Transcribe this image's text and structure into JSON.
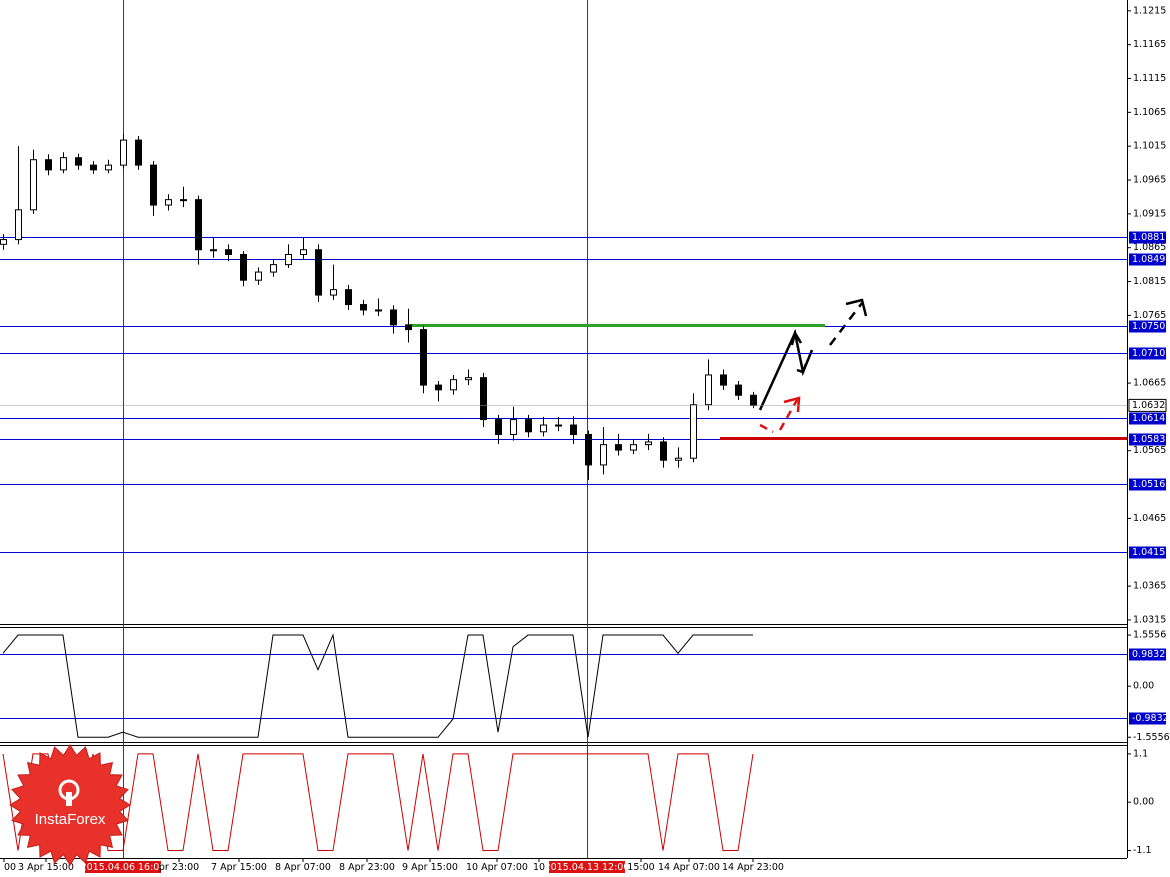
{
  "chart_data": [
    {
      "type": "candlestick",
      "open": [
        1.087,
        1.0877,
        1.0921,
        1.0995,
        1.098,
        1.0998,
        1.0987,
        1.098,
        1.0987,
        1.1024,
        1.0987,
        1.0928,
        1.0936,
        1.0936,
        1.0862,
        1.0862,
        1.0855,
        1.0817,
        1.0829,
        1.084,
        1.0855,
        1.0862,
        1.0795,
        1.0803,
        1.0781,
        1.0773,
        1.0773,
        1.0751,
        1.0744,
        1.0662,
        1.0655,
        1.067,
        1.0673,
        1.0611,
        1.0589,
        1.0611,
        1.0593,
        1.0603,
        1.0603,
        1.0589,
        1.0544,
        1.0574,
        1.0566,
        1.0574,
        1.0578,
        1.0551,
        1.0554,
        1.0633,
        1.0677,
        1.0662,
        1.0647
      ],
      "high": [
        1.0885,
        1.1015,
        1.101,
        1.1003,
        1.1006,
        1.1004,
        1.0993,
        1.0995,
        1.1033,
        1.103,
        1.0993,
        1.0944,
        1.0955,
        1.0942,
        1.088,
        1.087,
        1.086,
        1.0836,
        1.0848,
        1.087,
        1.088,
        1.087,
        1.084,
        1.081,
        1.0788,
        1.079,
        1.078,
        1.0775,
        1.075,
        1.0668,
        1.0677,
        1.0685,
        1.068,
        1.0618,
        1.063,
        1.0618,
        1.0615,
        1.0615,
        1.0616,
        1.0595,
        1.06,
        1.059,
        1.0582,
        1.059,
        1.0585,
        1.057,
        1.065,
        1.07,
        1.0685,
        1.0668,
        1.0652
      ],
      "low": [
        1.0862,
        1.087,
        1.0915,
        1.0972,
        1.0975,
        1.098,
        1.0974,
        1.0975,
        1.0982,
        1.098,
        1.0912,
        1.092,
        1.0925,
        1.084,
        1.085,
        1.0845,
        1.0808,
        1.081,
        1.0822,
        1.0835,
        1.0848,
        1.0785,
        1.0788,
        1.0773,
        1.0765,
        1.0764,
        1.0738,
        1.0725,
        1.065,
        1.0638,
        1.0648,
        1.0662,
        1.06,
        1.0575,
        1.058,
        1.0585,
        1.0586,
        1.0594,
        1.0575,
        1.0522,
        1.053,
        1.0558,
        1.056,
        1.0566,
        1.054,
        1.054,
        1.0548,
        1.0625,
        1.0655,
        1.064,
        1.0628
      ],
      "close": [
        1.0877,
        1.0921,
        1.0995,
        1.098,
        1.0998,
        1.0987,
        1.098,
        1.0987,
        1.1024,
        1.0987,
        1.0928,
        1.0936,
        1.0936,
        1.0862,
        1.0862,
        1.0855,
        1.0817,
        1.0829,
        1.084,
        1.0855,
        1.0862,
        1.0795,
        1.0803,
        1.0781,
        1.0773,
        1.0773,
        1.0751,
        1.0744,
        1.0662,
        1.0655,
        1.067,
        1.0673,
        1.0611,
        1.0589,
        1.0611,
        1.0593,
        1.0603,
        1.0603,
        1.0589,
        1.0544,
        1.0574,
        1.0566,
        1.0574,
        1.0578,
        1.0551,
        1.0554,
        1.0633,
        1.0677,
        1.0662,
        1.0647,
        1.0632
      ],
      "ylim": [
        1.0309,
        1.1231
      ],
      "yticks": [
        1.1215,
        1.1165,
        1.1115,
        1.1065,
        1.1015,
        1.0965,
        1.0915,
        1.0865,
        1.0815,
        1.0765,
        1.0665,
        1.0565,
        1.0465,
        1.0365,
        1.0315
      ],
      "levels": [
        1.0881,
        1.0849,
        {
          "value": 1.075,
          "label": "1.0750"
        },
        {
          "value": 1.071,
          "label": "1.0710"
        },
        1.0614,
        1.0583,
        1.0516,
        1.0415
      ],
      "level_color": "#0000cc",
      "highlight_lines": [
        {
          "value": 1.075,
          "color": "#2ca02c"
        },
        {
          "value": 1.0583,
          "color": "#cc0000"
        }
      ],
      "last_price": 1.0632,
      "x_labels": [
        {
          "text": "00"
        },
        {
          "text": "3 Apr 15:00"
        },
        {
          "text": "2015.04.06 16:00",
          "highlight": true
        },
        {
          "text": "pr 23:00"
        },
        {
          "text": "7 Apr 15:00"
        },
        {
          "text": "8 Apr 07:00"
        },
        {
          "text": "8 Apr 23:00"
        },
        {
          "text": "9 Apr 15:00"
        },
        {
          "text": "10 Apr 07:00"
        },
        {
          "text": "10"
        },
        {
          "text": "2015.04.13 12:00",
          "highlight": true
        },
        {
          "text": "15:00"
        },
        {
          "text": "14 Apr 07:00"
        },
        {
          "text": "14 Apr 23:00"
        }
      ],
      "watermark": "InstaForex"
    },
    {
      "type": "line",
      "color": "#000000",
      "values": [
        1.0,
        1.5556,
        1.5556,
        1.5556,
        1.5556,
        -1.5556,
        -1.5556,
        -1.5556,
        -1.4,
        -1.5556,
        -1.5556,
        -1.5556,
        -1.5556,
        -1.5556,
        -1.5556,
        -1.5556,
        -1.5556,
        -1.5556,
        1.5556,
        1.5556,
        1.5556,
        0.5,
        1.5556,
        -1.5556,
        -1.5556,
        -1.5556,
        -1.5556,
        -1.5556,
        -1.5556,
        -1.5556,
        -1.0,
        1.5556,
        1.5556,
        -1.4,
        1.2,
        1.5556,
        1.5556,
        1.5556,
        1.5556,
        -1.5556,
        1.5556,
        1.5556,
        1.5556,
        1.5556,
        1.5556,
        1.0,
        1.5556,
        1.5556,
        1.5556,
        1.5556,
        1.5556
      ],
      "ylim": [
        -1.7,
        1.77
      ],
      "yticks": [
        1.5556,
        {
          "value": 0,
          "label": "0.00"
        },
        -1.5556
      ],
      "levels": [
        0.9832,
        -0.9832
      ],
      "level_color": "#0000cc"
    },
    {
      "type": "line",
      "color": "#cc0000",
      "values": [
        1.1,
        -1.1,
        1.1,
        1.1,
        -1.1,
        -1.1,
        1.1,
        -1.1,
        -1.1,
        1.1,
        1.1,
        -1.1,
        -1.1,
        1.1,
        -1.1,
        -1.1,
        1.1,
        1.1,
        1.1,
        1.1,
        1.1,
        -1.1,
        -1.1,
        1.1,
        1.1,
        1.1,
        1.1,
        -1.1,
        1.1,
        -1.1,
        1.1,
        1.1,
        -1.1,
        -1.1,
        1.1,
        1.1,
        1.1,
        1.1,
        1.1,
        1.1,
        1.1,
        1.1,
        1.1,
        1.1,
        -1.1,
        1.1,
        1.1,
        1.1,
        -1.1,
        -1.1,
        1.1
      ],
      "ylim": [
        -1.27,
        1.28
      ],
      "yticks": [
        1.1,
        {
          "value": 0,
          "label": "0.00"
        },
        -1.1
      ]
    }
  ]
}
